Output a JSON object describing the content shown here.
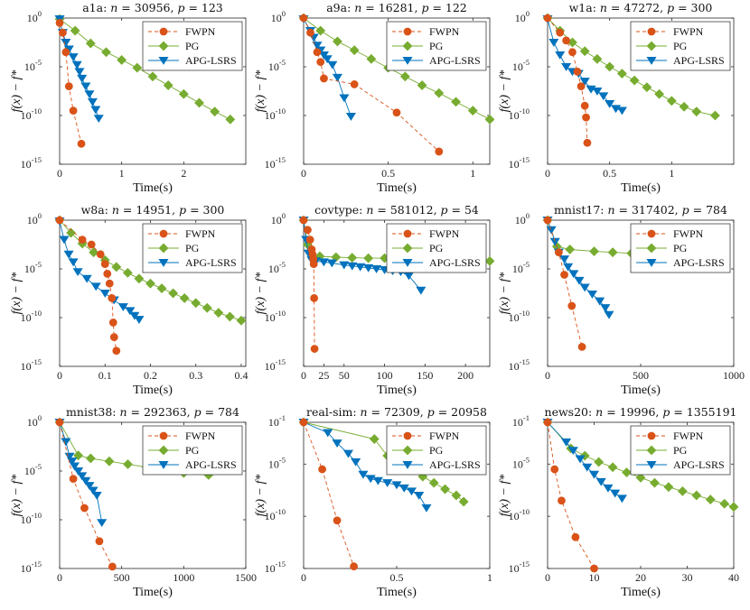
{
  "figure": {
    "xlabel": "Time(s)",
    "ylabel": "f(x) − f*",
    "legend": {
      "placement": "top-right",
      "entries": [
        "FWPN",
        "PG",
        "APG-LSRS"
      ]
    },
    "colors": {
      "FWPN": "#D95319",
      "PG": "#77AC30",
      "APG-LSRS": "#0072BD"
    },
    "markers": {
      "FWPN": "circle",
      "PG": "diamond",
      "APG-LSRS": "down-triangle"
    },
    "line_styles": {
      "FWPN": "dashed",
      "PG": "solid",
      "APG-LSRS": "solid"
    }
  },
  "chart_data": [
    {
      "type": "line",
      "yscale": "log",
      "title": {
        "name": "a1a",
        "n": "30956",
        "p": "123"
      },
      "xlim": [
        0,
        3
      ],
      "xticks": [
        0,
        1,
        2
      ],
      "xticklabels": [
        "0",
        "1",
        "2"
      ],
      "ylim_exp": [
        -15,
        0
      ],
      "yticks_exp": [
        0,
        -5,
        -10,
        -15
      ],
      "series": [
        {
          "name": "FWPN",
          "x": [
            0,
            0.05,
            0.1,
            0.15,
            0.22,
            0.35
          ],
          "y_exp": [
            -0.5,
            -1.5,
            -3.5,
            -7.0,
            -9.5,
            -12.9
          ]
        },
        {
          "name": "PG",
          "x": [
            0,
            0.25,
            0.5,
            0.75,
            1.0,
            1.25,
            1.5,
            1.75,
            2.0,
            2.25,
            2.5,
            2.75
          ],
          "y_exp": [
            -0.1,
            -1.3,
            -2.6,
            -3.5,
            -4.3,
            -5.1,
            -6.0,
            -6.9,
            -7.8,
            -8.7,
            -9.6,
            -10.4
          ]
        },
        {
          "name": "APG-LSRS",
          "x": [
            0,
            0.05,
            0.1,
            0.15,
            0.22,
            0.28,
            0.32,
            0.36,
            0.42,
            0.48,
            0.53,
            0.58,
            0.63
          ],
          "y_exp": [
            -0.1,
            -1.5,
            -2.5,
            -3.2,
            -4.0,
            -4.8,
            -5.5,
            -6.2,
            -7.0,
            -7.8,
            -8.6,
            -9.4,
            -10.3
          ]
        }
      ]
    },
    {
      "type": "line",
      "yscale": "log",
      "title": {
        "name": "a9a",
        "n": "16281",
        "p": "122"
      },
      "xlim": [
        0,
        1.1
      ],
      "xticks": [
        0,
        0.5,
        1
      ],
      "xticklabels": [
        "0",
        "0.5",
        "1"
      ],
      "ylim_exp": [
        -15,
        0
      ],
      "yticks_exp": [
        0,
        -5,
        -10,
        -15
      ],
      "series": [
        {
          "name": "FWPN",
          "x": [
            0,
            0.04,
            0.08,
            0.1,
            0.12,
            0.3,
            0.55,
            0.8
          ],
          "y_exp": [
            0,
            -1.5,
            -3.5,
            -4.5,
            -6.2,
            -6.8,
            -9.7,
            -13.7
          ]
        },
        {
          "name": "PG",
          "x": [
            0,
            0.1,
            0.2,
            0.3,
            0.4,
            0.5,
            0.6,
            0.7,
            0.8,
            0.9,
            1.0,
            1.1
          ],
          "y_exp": [
            0,
            -1.3,
            -2.4,
            -3.3,
            -4.2,
            -5.1,
            -6.0,
            -6.9,
            -7.7,
            -8.6,
            -9.5,
            -10.4
          ]
        },
        {
          "name": "APG-LSRS",
          "x": [
            0,
            0.04,
            0.06,
            0.08,
            0.1,
            0.12,
            0.14,
            0.17,
            0.2,
            0.24,
            0.28
          ],
          "y_exp": [
            -0.1,
            -1.3,
            -2.0,
            -2.8,
            -3.3,
            -3.8,
            -4.2,
            -4.8,
            -6.1,
            -8.2,
            -10.1
          ]
        }
      ]
    },
    {
      "type": "line",
      "yscale": "log",
      "title": {
        "name": "w1a",
        "n": "47272",
        "p": "300"
      },
      "xlim": [
        0,
        1.5
      ],
      "xticks": [
        0,
        0.5,
        1
      ],
      "xticklabels": [
        "0",
        "0.5",
        "1"
      ],
      "ylim_exp": [
        -15,
        0
      ],
      "yticks_exp": [
        0,
        -5,
        -10,
        -15
      ],
      "series": [
        {
          "name": "FWPN",
          "x": [
            0,
            0.1,
            0.15,
            0.2,
            0.24,
            0.27,
            0.3,
            0.31,
            0.32
          ],
          "y_exp": [
            0,
            -1.5,
            -2.3,
            -3.5,
            -5.5,
            -7.0,
            -9.0,
            -10.2,
            -12.8
          ]
        },
        {
          "name": "PG",
          "x": [
            0,
            0.1,
            0.2,
            0.3,
            0.4,
            0.5,
            0.6,
            0.7,
            0.8,
            0.9,
            1.0,
            1.1,
            1.2,
            1.35
          ],
          "y_exp": [
            0,
            -1.3,
            -2.5,
            -3.4,
            -4.2,
            -5.0,
            -5.7,
            -6.4,
            -7.1,
            -7.8,
            -8.5,
            -9.1,
            -9.6,
            -10.0
          ]
        },
        {
          "name": "APG-LSRS",
          "x": [
            0,
            0.05,
            0.1,
            0.15,
            0.2,
            0.25,
            0.3,
            0.35,
            0.4,
            0.45,
            0.5,
            0.55,
            0.6
          ],
          "y_exp": [
            -0.1,
            -2.5,
            -3.8,
            -5.0,
            -5.5,
            -5.7,
            -6.5,
            -7.3,
            -7.5,
            -8.0,
            -8.8,
            -9.3,
            -9.5
          ]
        }
      ]
    },
    {
      "type": "line",
      "yscale": "log",
      "title": {
        "name": "w8a",
        "n": "14951",
        "p": "300"
      },
      "xlim": [
        0,
        0.41
      ],
      "xticks": [
        0,
        0.1,
        0.2,
        0.3,
        0.4
      ],
      "xticklabels": [
        "0",
        "0.1",
        "0.2",
        "0.3",
        "0.4"
      ],
      "ylim_exp": [
        -15,
        0
      ],
      "yticks_exp": [
        0,
        -5,
        -10,
        -15
      ],
      "series": [
        {
          "name": "FWPN",
          "x": [
            0,
            0.05,
            0.07,
            0.09,
            0.1,
            0.105,
            0.11,
            0.115,
            0.118,
            0.12,
            0.125
          ],
          "y_exp": [
            0,
            -2.0,
            -2.5,
            -3.5,
            -4.5,
            -5.5,
            -6.5,
            -8.0,
            -10.5,
            -12.0,
            -13.4
          ]
        },
        {
          "name": "PG",
          "x": [
            0,
            0.025,
            0.05,
            0.075,
            0.1,
            0.125,
            0.15,
            0.175,
            0.2,
            0.225,
            0.25,
            0.275,
            0.3,
            0.325,
            0.35,
            0.375,
            0.4
          ],
          "y_exp": [
            0,
            -1.3,
            -2.4,
            -3.3,
            -4.1,
            -4.8,
            -5.4,
            -6.0,
            -6.5,
            -7.0,
            -7.5,
            -8.0,
            -8.5,
            -9.0,
            -9.5,
            -9.9,
            -10.3
          ]
        },
        {
          "name": "APG-LSRS",
          "x": [
            0,
            0.01,
            0.02,
            0.03,
            0.04,
            0.06,
            0.08,
            0.1,
            0.12,
            0.14,
            0.155,
            0.165,
            0.175
          ],
          "y_exp": [
            -0.1,
            -2.0,
            -3.5,
            -4.3,
            -5.3,
            -6.0,
            -6.8,
            -7.5,
            -8.2,
            -8.9,
            -9.3,
            -9.8,
            -10.2
          ]
        }
      ]
    },
    {
      "type": "line",
      "yscale": "log",
      "title": {
        "name": "covtype",
        "n": "581012",
        "p": "54"
      },
      "xlim": [
        0,
        230
      ],
      "xticks": [
        0,
        25,
        50,
        100,
        150,
        200
      ],
      "xticklabels": [
        "0",
        "25",
        "50",
        "100",
        "150",
        "200"
      ],
      "ylim_exp": [
        -15,
        0
      ],
      "yticks_exp": [
        0,
        -5,
        -10,
        -15
      ],
      "series": [
        {
          "name": "FWPN",
          "x": [
            0,
            5,
            8,
            10,
            11,
            12,
            12.5,
            13,
            13.5
          ],
          "y_exp": [
            0,
            -1.0,
            -2.0,
            -3.0,
            -3.5,
            -4.0,
            -4.5,
            -8.0,
            -13.2
          ]
        },
        {
          "name": "PG",
          "x": [
            0,
            5,
            10,
            20,
            40,
            60,
            80,
            100,
            120,
            140,
            160,
            180,
            200,
            230
          ],
          "y_exp": [
            0,
            -2.5,
            -3.5,
            -3.7,
            -3.8,
            -3.85,
            -3.9,
            -3.9,
            -3.95,
            -4.0,
            -4.05,
            -4.1,
            -4.15,
            -4.2
          ]
        },
        {
          "name": "APG-LSRS",
          "x": [
            0,
            3,
            6,
            10,
            15,
            25,
            35,
            50,
            60,
            70,
            80,
            90,
            100,
            110,
            120,
            130,
            145
          ],
          "y_exp": [
            0,
            -2.0,
            -3.4,
            -4.1,
            -4.2,
            -4.3,
            -4.4,
            -4.6,
            -4.7,
            -4.8,
            -4.9,
            -5.0,
            -5.1,
            -5.2,
            -5.3,
            -5.7,
            -7.2
          ]
        }
      ]
    },
    {
      "type": "line",
      "yscale": "log",
      "title": {
        "name": "mnist17",
        "n": "317402",
        "p": "784"
      },
      "xlim": [
        0,
        1000
      ],
      "xticks": [
        0,
        500,
        1000
      ],
      "xticklabels": [
        "0",
        "500",
        "1000"
      ],
      "ylim_exp": [
        -15,
        0
      ],
      "yticks_exp": [
        0,
        -5,
        -10,
        -15
      ],
      "series": [
        {
          "name": "FWPN",
          "x": [
            0,
            60,
            90,
            130,
            185
          ],
          "y_exp": [
            0,
            -3.3,
            -5.6,
            -8.8,
            -13.0
          ]
        },
        {
          "name": "PG",
          "x": [
            0,
            50,
            120,
            250,
            350,
            450,
            550,
            650,
            750,
            850,
            950
          ],
          "y_exp": [
            0,
            -2.7,
            -3.0,
            -3.2,
            -3.3,
            -3.4,
            -3.5,
            -3.6,
            -3.7,
            -3.8,
            -4.0
          ]
        },
        {
          "name": "APG-LSRS",
          "x": [
            0,
            20,
            40,
            60,
            90,
            110,
            140,
            170,
            200,
            240,
            280,
            310,
            330
          ],
          "y_exp": [
            0,
            -1.0,
            -2.2,
            -3.3,
            -4.0,
            -4.8,
            -5.5,
            -6.2,
            -6.9,
            -7.6,
            -8.3,
            -9.0,
            -9.7
          ]
        }
      ]
    },
    {
      "type": "line",
      "yscale": "log",
      "title": {
        "name": "mnist38",
        "n": "292363",
        "p": "784"
      },
      "xlim": [
        0,
        1500
      ],
      "xticks": [
        0,
        500,
        1000,
        1500
      ],
      "xticklabels": [
        "0",
        "500",
        "1000",
        "1500"
      ],
      "ylim_exp": [
        -15,
        0
      ],
      "yticks_exp": [
        0,
        -5,
        -10,
        -15
      ],
      "series": [
        {
          "name": "FWPN",
          "x": [
            0,
            110,
            200,
            320,
            425
          ],
          "y_exp": [
            0,
            -5.8,
            -8.8,
            -12.2,
            -14.8
          ]
        },
        {
          "name": "PG",
          "x": [
            0,
            150,
            250,
            400,
            550,
            700,
            850,
            1000,
            1200
          ],
          "y_exp": [
            0,
            -3.4,
            -3.7,
            -4.0,
            -4.3,
            -4.6,
            -4.9,
            -5.2,
            -5.4
          ]
        },
        {
          "name": "APG-LSRS",
          "x": [
            0,
            50,
            80,
            100,
            120,
            150,
            180,
            210,
            240,
            270,
            300,
            340
          ],
          "y_exp": [
            0,
            -2.0,
            -3.5,
            -4.0,
            -4.5,
            -5.0,
            -5.5,
            -6.0,
            -6.5,
            -7.0,
            -7.5,
            -10.3
          ]
        }
      ]
    },
    {
      "type": "line",
      "yscale": "log",
      "title": {
        "name": "real-sim",
        "n": "72309",
        "p": "20958"
      },
      "xlim": [
        0,
        1
      ],
      "xticks": [
        0,
        0.5,
        1
      ],
      "xticklabels": [
        "0",
        "0.5",
        "1"
      ],
      "ylim_exp": [
        -15,
        -1
      ],
      "yticks_exp": [
        -1,
        -5,
        -10,
        -15
      ],
      "series": [
        {
          "name": "FWPN",
          "x": [
            0,
            0.1,
            0.18,
            0.27
          ],
          "y_exp": [
            -1.0,
            -5.5,
            -10.4,
            -14.8
          ]
        },
        {
          "name": "PG",
          "x": [
            0,
            0.38,
            0.45,
            0.52,
            0.58,
            0.64,
            0.7,
            0.76,
            0.82,
            0.86
          ],
          "y_exp": [
            -1.0,
            -2.6,
            -4.2,
            -5.0,
            -5.6,
            -6.2,
            -6.8,
            -7.4,
            -8.0,
            -8.6
          ]
        },
        {
          "name": "APG-LSRS",
          "x": [
            0,
            0.13,
            0.18,
            0.24,
            0.28,
            0.32,
            0.36,
            0.4,
            0.45,
            0.5,
            0.54,
            0.58,
            0.62,
            0.66
          ],
          "y_exp": [
            -1.0,
            -2.0,
            -3.0,
            -4.0,
            -4.8,
            -6.0,
            -6.4,
            -6.6,
            -6.8,
            -7.0,
            -7.3,
            -7.6,
            -8.0,
            -9.2
          ]
        }
      ]
    },
    {
      "type": "line",
      "yscale": "log",
      "title": {
        "name": "news20",
        "n": "19996",
        "p": "1355191"
      },
      "xlim": [
        0,
        40
      ],
      "xticks": [
        0,
        10,
        20,
        30,
        40
      ],
      "xticklabels": [
        "0",
        "10",
        "20",
        "30",
        "40"
      ],
      "ylim_exp": [
        -15,
        -1
      ],
      "yticks_exp": [
        -1,
        -5,
        -10,
        -15
      ],
      "series": [
        {
          "name": "FWPN",
          "x": [
            0,
            1.5,
            3,
            6,
            10
          ],
          "y_exp": [
            -1.0,
            -5.5,
            -8.5,
            -12.0,
            -15.0
          ]
        },
        {
          "name": "PG",
          "x": [
            0,
            5,
            8,
            11,
            14,
            17,
            20,
            23,
            26,
            29,
            32,
            35,
            38,
            40
          ],
          "y_exp": [
            -1.0,
            -3.5,
            -4.2,
            -4.8,
            -5.3,
            -5.8,
            -6.3,
            -6.8,
            -7.2,
            -7.6,
            -8.0,
            -8.4,
            -8.8,
            -9.1
          ]
        },
        {
          "name": "APG-LSRS",
          "x": [
            0,
            4,
            5.5,
            7,
            8.5,
            10,
            11.5,
            13,
            14.5,
            16
          ],
          "y_exp": [
            -1.0,
            -2.9,
            -3.7,
            -4.5,
            -5.3,
            -6.0,
            -6.7,
            -7.3,
            -7.8,
            -8.3
          ]
        }
      ]
    }
  ]
}
